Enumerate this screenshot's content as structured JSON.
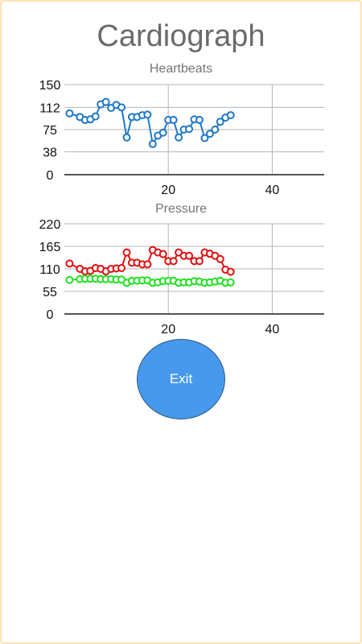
{
  "app": {
    "title": "Cardiograph"
  },
  "exit_button": {
    "label": "Exit"
  },
  "colors": {
    "heartbeats": "#1e78c8",
    "systolic": "#e01010",
    "diastolic": "#20e020",
    "button": "#4699ec"
  },
  "chart_data": [
    {
      "type": "line",
      "title": "Heartbeats",
      "xlabel": "",
      "ylabel": "",
      "xlim": [
        0,
        50
      ],
      "ylim": [
        0,
        150
      ],
      "x_ticks": [
        "20",
        "40"
      ],
      "y_ticks": [
        "0",
        "38",
        "75",
        "112",
        "150"
      ],
      "grid": true,
      "series": [
        {
          "x": [
            1,
            3,
            4,
            5,
            6,
            7,
            8,
            9,
            10,
            11,
            12,
            13,
            14,
            15,
            16,
            17,
            18,
            19,
            20,
            21,
            22,
            23,
            24,
            25,
            26,
            27,
            28,
            29,
            30,
            31,
            32,
            33,
            34
          ],
          "values": [
            102,
            96,
            91,
            92,
            97,
            117,
            121,
            111,
            116,
            112,
            62,
            96,
            96,
            99,
            100,
            51,
            65,
            70,
            91,
            91,
            62,
            75,
            76,
            92,
            91,
            61,
            68,
            75,
            88,
            95,
            99,
            null,
            null
          ]
        }
      ]
    },
    {
      "type": "line",
      "title": "Pressure",
      "xlabel": "",
      "ylabel": "",
      "xlim": [
        0,
        50
      ],
      "ylim": [
        0,
        220
      ],
      "x_ticks": [
        "20",
        "40"
      ],
      "y_ticks": [
        "0",
        "55",
        "110",
        "165",
        "220"
      ],
      "grid": true,
      "series": [
        {
          "x": [
            1,
            3,
            4,
            5,
            6,
            7,
            8,
            9,
            10,
            11,
            12,
            13,
            14,
            15,
            16,
            17,
            18,
            19,
            20,
            21,
            22,
            23,
            24,
            25,
            26,
            27,
            28,
            29,
            30,
            31,
            32,
            33,
            34
          ],
          "values": [
            123,
            110,
            104,
            105,
            112,
            110,
            104,
            110,
            111,
            112,
            150,
            125,
            125,
            121,
            121,
            156,
            150,
            146,
            129,
            129,
            150,
            142,
            142,
            129,
            129,
            150,
            147,
            142,
            134,
            108,
            103,
            null,
            null
          ]
        },
        {
          "x": [
            1,
            3,
            4,
            5,
            6,
            7,
            8,
            9,
            10,
            11,
            12,
            13,
            14,
            15,
            16,
            17,
            18,
            19,
            20,
            21,
            22,
            23,
            24,
            25,
            26,
            27,
            28,
            29,
            30,
            31,
            32,
            33,
            34
          ],
          "values": [
            83,
            85,
            86,
            86,
            86,
            85,
            85,
            85,
            84,
            84,
            76,
            81,
            81,
            82,
            82,
            76,
            77,
            80,
            81,
            81,
            76,
            77,
            77,
            80,
            79,
            76,
            77,
            79,
            81,
            76,
            77,
            null,
            null
          ]
        }
      ]
    }
  ]
}
